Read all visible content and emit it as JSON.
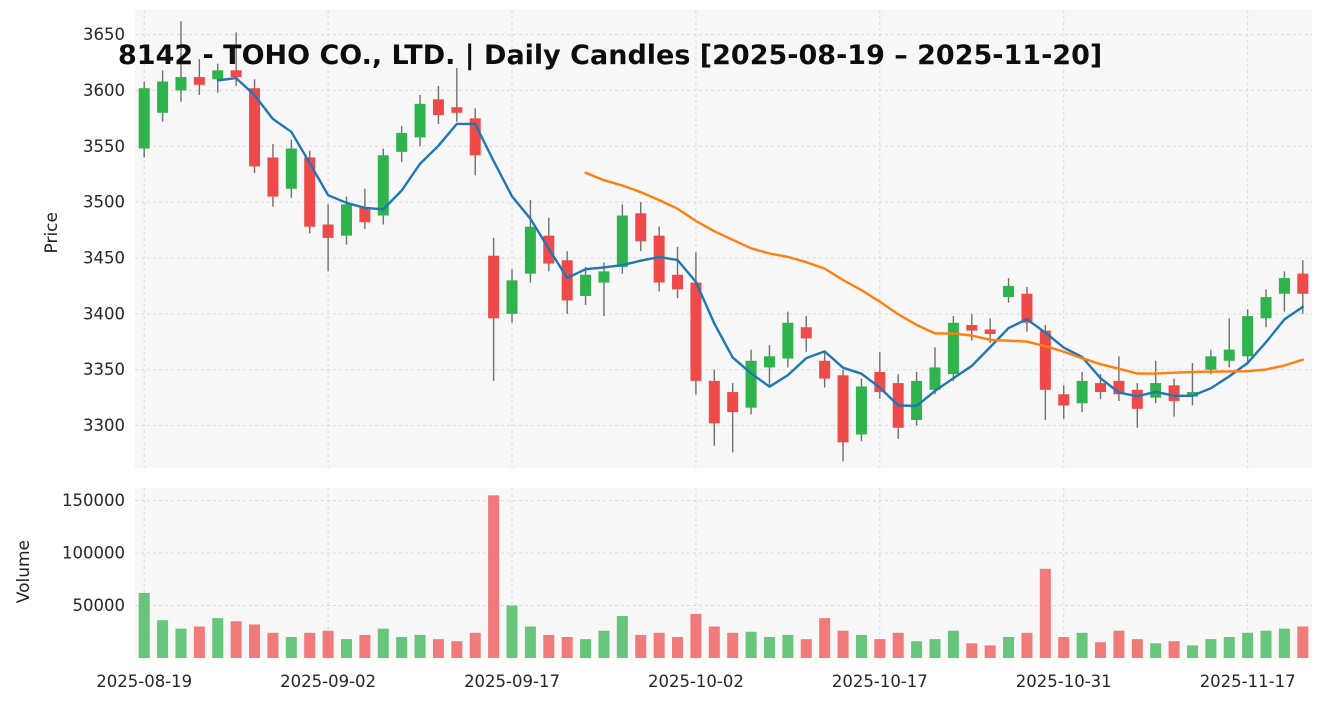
{
  "title": "8142 - TOHO CO., LTD. | Daily Candles [2025-08-19 – 2025-11-20]",
  "price_axis_label": "Price",
  "volume_axis_label": "Volume",
  "chart_data": {
    "type": "candlestick",
    "symbol": "8142",
    "company": "TOHO CO., LTD.",
    "interval": "Daily",
    "period": {
      "start": "2025-08-19",
      "end": "2025-11-20"
    },
    "price_ylim": [
      3262,
      3672
    ],
    "volume_ylim": [
      0,
      162000
    ],
    "price_ticks": [
      3300,
      3350,
      3400,
      3450,
      3500,
      3550,
      3600,
      3650
    ],
    "volume_ticks": [
      50000,
      100000,
      150000
    ],
    "x_ticks": [
      {
        "index": 0,
        "label": "2025-08-19"
      },
      {
        "index": 10,
        "label": "2025-09-02"
      },
      {
        "index": 20,
        "label": "2025-09-17"
      },
      {
        "index": 30,
        "label": "2025-10-02"
      },
      {
        "index": 40,
        "label": "2025-10-17"
      },
      {
        "index": 50,
        "label": "2025-10-31"
      },
      {
        "index": 60,
        "label": "2025-11-17"
      }
    ],
    "indicators": [
      {
        "name": "SMA5",
        "window": 5,
        "color": "#1f77b4"
      },
      {
        "name": "SMA25",
        "window": 25,
        "color": "#ff7f0e"
      }
    ],
    "colors": {
      "up": "#2fb34c",
      "down": "#ef4a4a",
      "wick": "#6f6f6f",
      "grid": "#d9d9d9",
      "panel_bg": "#f7f7f7",
      "tick_text": "#262626"
    },
    "ohlcv_columns": [
      "date",
      "open",
      "high",
      "low",
      "close",
      "volume"
    ],
    "ohlcv": [
      [
        "2025-08-19",
        3548,
        3608,
        3540,
        3602,
        62000
      ],
      [
        "2025-08-20",
        3580,
        3618,
        3572,
        3608,
        36000
      ],
      [
        "2025-08-21",
        3600,
        3662,
        3590,
        3612,
        28000
      ],
      [
        "2025-08-22",
        3612,
        3628,
        3596,
        3605,
        30000
      ],
      [
        "2025-08-25",
        3610,
        3624,
        3598,
        3618,
        38000
      ],
      [
        "2025-08-26",
        3618,
        3652,
        3604,
        3612,
        35000
      ],
      [
        "2025-08-27",
        3602,
        3610,
        3526,
        3532,
        32000
      ],
      [
        "2025-08-28",
        3540,
        3552,
        3496,
        3505,
        24000
      ],
      [
        "2025-08-29",
        3512,
        3556,
        3504,
        3548,
        20000
      ],
      [
        "2025-09-01",
        3540,
        3546,
        3472,
        3478,
        24000
      ],
      [
        "2025-09-02",
        3480,
        3498,
        3438,
        3468,
        26000
      ],
      [
        "2025-09-03",
        3470,
        3505,
        3462,
        3498,
        18000
      ],
      [
        "2025-09-04",
        3495,
        3512,
        3476,
        3482,
        22000
      ],
      [
        "2025-09-05",
        3488,
        3548,
        3480,
        3542,
        28000
      ],
      [
        "2025-09-08",
        3545,
        3568,
        3536,
        3562,
        20000
      ],
      [
        "2025-09-09",
        3558,
        3596,
        3550,
        3588,
        22000
      ],
      [
        "2025-09-10",
        3592,
        3604,
        3570,
        3578,
        18000
      ],
      [
        "2025-09-11",
        3585,
        3620,
        3572,
        3580,
        16000
      ],
      [
        "2025-09-12",
        3575,
        3584,
        3524,
        3542,
        24000
      ],
      [
        "2025-09-16",
        3452,
        3468,
        3340,
        3396,
        155000
      ],
      [
        "2025-09-17",
        3400,
        3440,
        3392,
        3430,
        50000
      ],
      [
        "2025-09-18",
        3436,
        3502,
        3428,
        3478,
        30000
      ],
      [
        "2025-09-19",
        3470,
        3486,
        3438,
        3445,
        22000
      ],
      [
        "2025-09-22",
        3448,
        3456,
        3400,
        3412,
        20000
      ],
      [
        "2025-09-24",
        3416,
        3442,
        3408,
        3435,
        18000
      ],
      [
        "2025-09-25",
        3428,
        3446,
        3398,
        3438,
        26000
      ],
      [
        "2025-09-26",
        3442,
        3498,
        3436,
        3488,
        40000
      ],
      [
        "2025-09-29",
        3490,
        3500,
        3456,
        3465,
        22000
      ],
      [
        "2025-09-30",
        3470,
        3478,
        3420,
        3428,
        24000
      ],
      [
        "2025-10-01",
        3435,
        3460,
        3414,
        3422,
        20000
      ],
      [
        "2025-10-02",
        3428,
        3455,
        3328,
        3340,
        42000
      ],
      [
        "2025-10-03",
        3340,
        3350,
        3282,
        3302,
        30000
      ],
      [
        "2025-10-06",
        3330,
        3338,
        3276,
        3312,
        24000
      ],
      [
        "2025-10-07",
        3316,
        3368,
        3310,
        3358,
        25000
      ],
      [
        "2025-10-08",
        3352,
        3372,
        3334,
        3362,
        20000
      ],
      [
        "2025-10-09",
        3360,
        3402,
        3352,
        3392,
        22000
      ],
      [
        "2025-10-10",
        3388,
        3398,
        3366,
        3378,
        18000
      ],
      [
        "2025-10-14",
        3358,
        3366,
        3334,
        3342,
        38000
      ],
      [
        "2025-10-15",
        3345,
        3350,
        3268,
        3285,
        26000
      ],
      [
        "2025-10-16",
        3292,
        3342,
        3286,
        3335,
        22000
      ],
      [
        "2025-10-17",
        3348,
        3366,
        3324,
        3330,
        18000
      ],
      [
        "2025-10-20",
        3338,
        3346,
        3288,
        3298,
        24000
      ],
      [
        "2025-10-21",
        3305,
        3348,
        3300,
        3340,
        16000
      ],
      [
        "2025-10-22",
        3332,
        3370,
        3328,
        3352,
        18000
      ],
      [
        "2025-10-23",
        3346,
        3398,
        3340,
        3392,
        26000
      ],
      [
        "2025-10-24",
        3390,
        3400,
        3376,
        3385,
        14000
      ],
      [
        "2025-10-27",
        3386,
        3396,
        3374,
        3382,
        12000
      ],
      [
        "2025-10-28",
        3415,
        3432,
        3410,
        3425,
        20000
      ],
      [
        "2025-10-29",
        3418,
        3424,
        3384,
        3392,
        24000
      ],
      [
        "2025-10-30",
        3385,
        3390,
        3305,
        3332,
        85000
      ],
      [
        "2025-10-31",
        3328,
        3336,
        3306,
        3318,
        20000
      ],
      [
        "2025-11-04",
        3320,
        3348,
        3312,
        3340,
        24000
      ],
      [
        "2025-11-05",
        3338,
        3346,
        3324,
        3330,
        15000
      ],
      [
        "2025-11-06",
        3340,
        3362,
        3322,
        3328,
        26000
      ],
      [
        "2025-11-07",
        3332,
        3338,
        3298,
        3315,
        18000
      ],
      [
        "2025-11-10",
        3325,
        3358,
        3320,
        3338,
        14000
      ],
      [
        "2025-11-11",
        3336,
        3342,
        3308,
        3322,
        16000
      ],
      [
        "2025-11-12",
        3326,
        3356,
        3318,
        3330,
        12000
      ],
      [
        "2025-11-13",
        3350,
        3368,
        3346,
        3362,
        18000
      ],
      [
        "2025-11-14",
        3358,
        3396,
        3352,
        3368,
        20000
      ],
      [
        "2025-11-17",
        3362,
        3404,
        3356,
        3398,
        24000
      ],
      [
        "2025-11-18",
        3396,
        3422,
        3388,
        3415,
        26000
      ],
      [
        "2025-11-19",
        3418,
        3438,
        3402,
        3432,
        28000
      ],
      [
        "2025-11-20",
        3436,
        3448,
        3400,
        3418,
        30000
      ]
    ]
  }
}
